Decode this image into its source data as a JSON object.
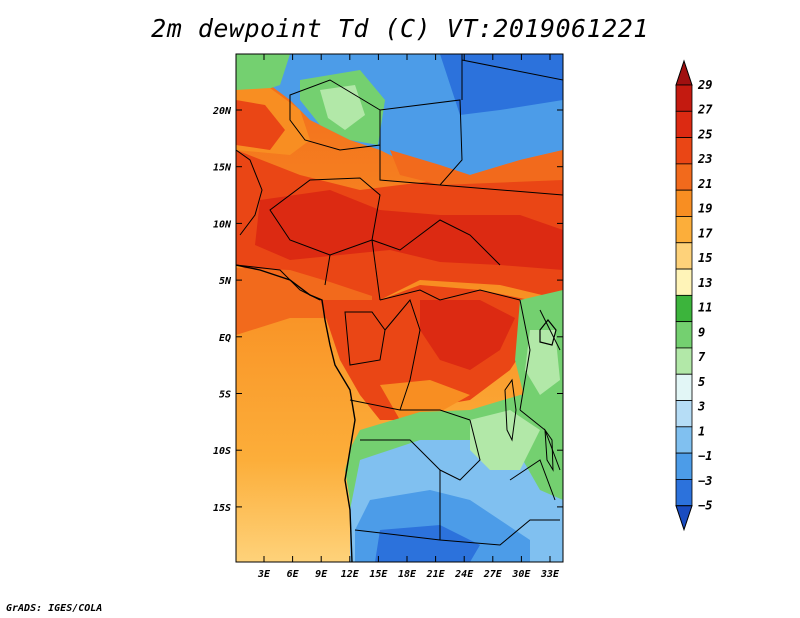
{
  "title": "2m dewpoint Td (C) VT:2019061221",
  "credit": "GrADS: IGES/COLA",
  "map": {
    "lat_labels": [
      "20N",
      "15N",
      "10N",
      "5N",
      "EQ",
      "5S",
      "10S",
      "15S"
    ],
    "lon_labels": [
      "3E",
      "6E",
      "9E",
      "12E",
      "15E",
      "18E",
      "21E",
      "24E",
      "27E",
      "30E",
      "33E"
    ]
  },
  "colorbar": {
    "labels": [
      "29",
      "27",
      "25",
      "23",
      "21",
      "19",
      "17",
      "15",
      "13",
      "11",
      "9",
      "7",
      "5",
      "3",
      "1",
      "−1",
      "−3",
      "−5"
    ],
    "colors": [
      "#a01010",
      "#c41a10",
      "#dc2a12",
      "#ea4615",
      "#f26a1c",
      "#f88e22",
      "#fcae3a",
      "#fed27a",
      "#fff4b8",
      "#3cb43c",
      "#74d070",
      "#b2e8a8",
      "#e2f6f6",
      "#b6ddf6",
      "#80c0f0",
      "#4c9ce8",
      "#2c72dc",
      "#1a4cc0"
    ]
  }
}
